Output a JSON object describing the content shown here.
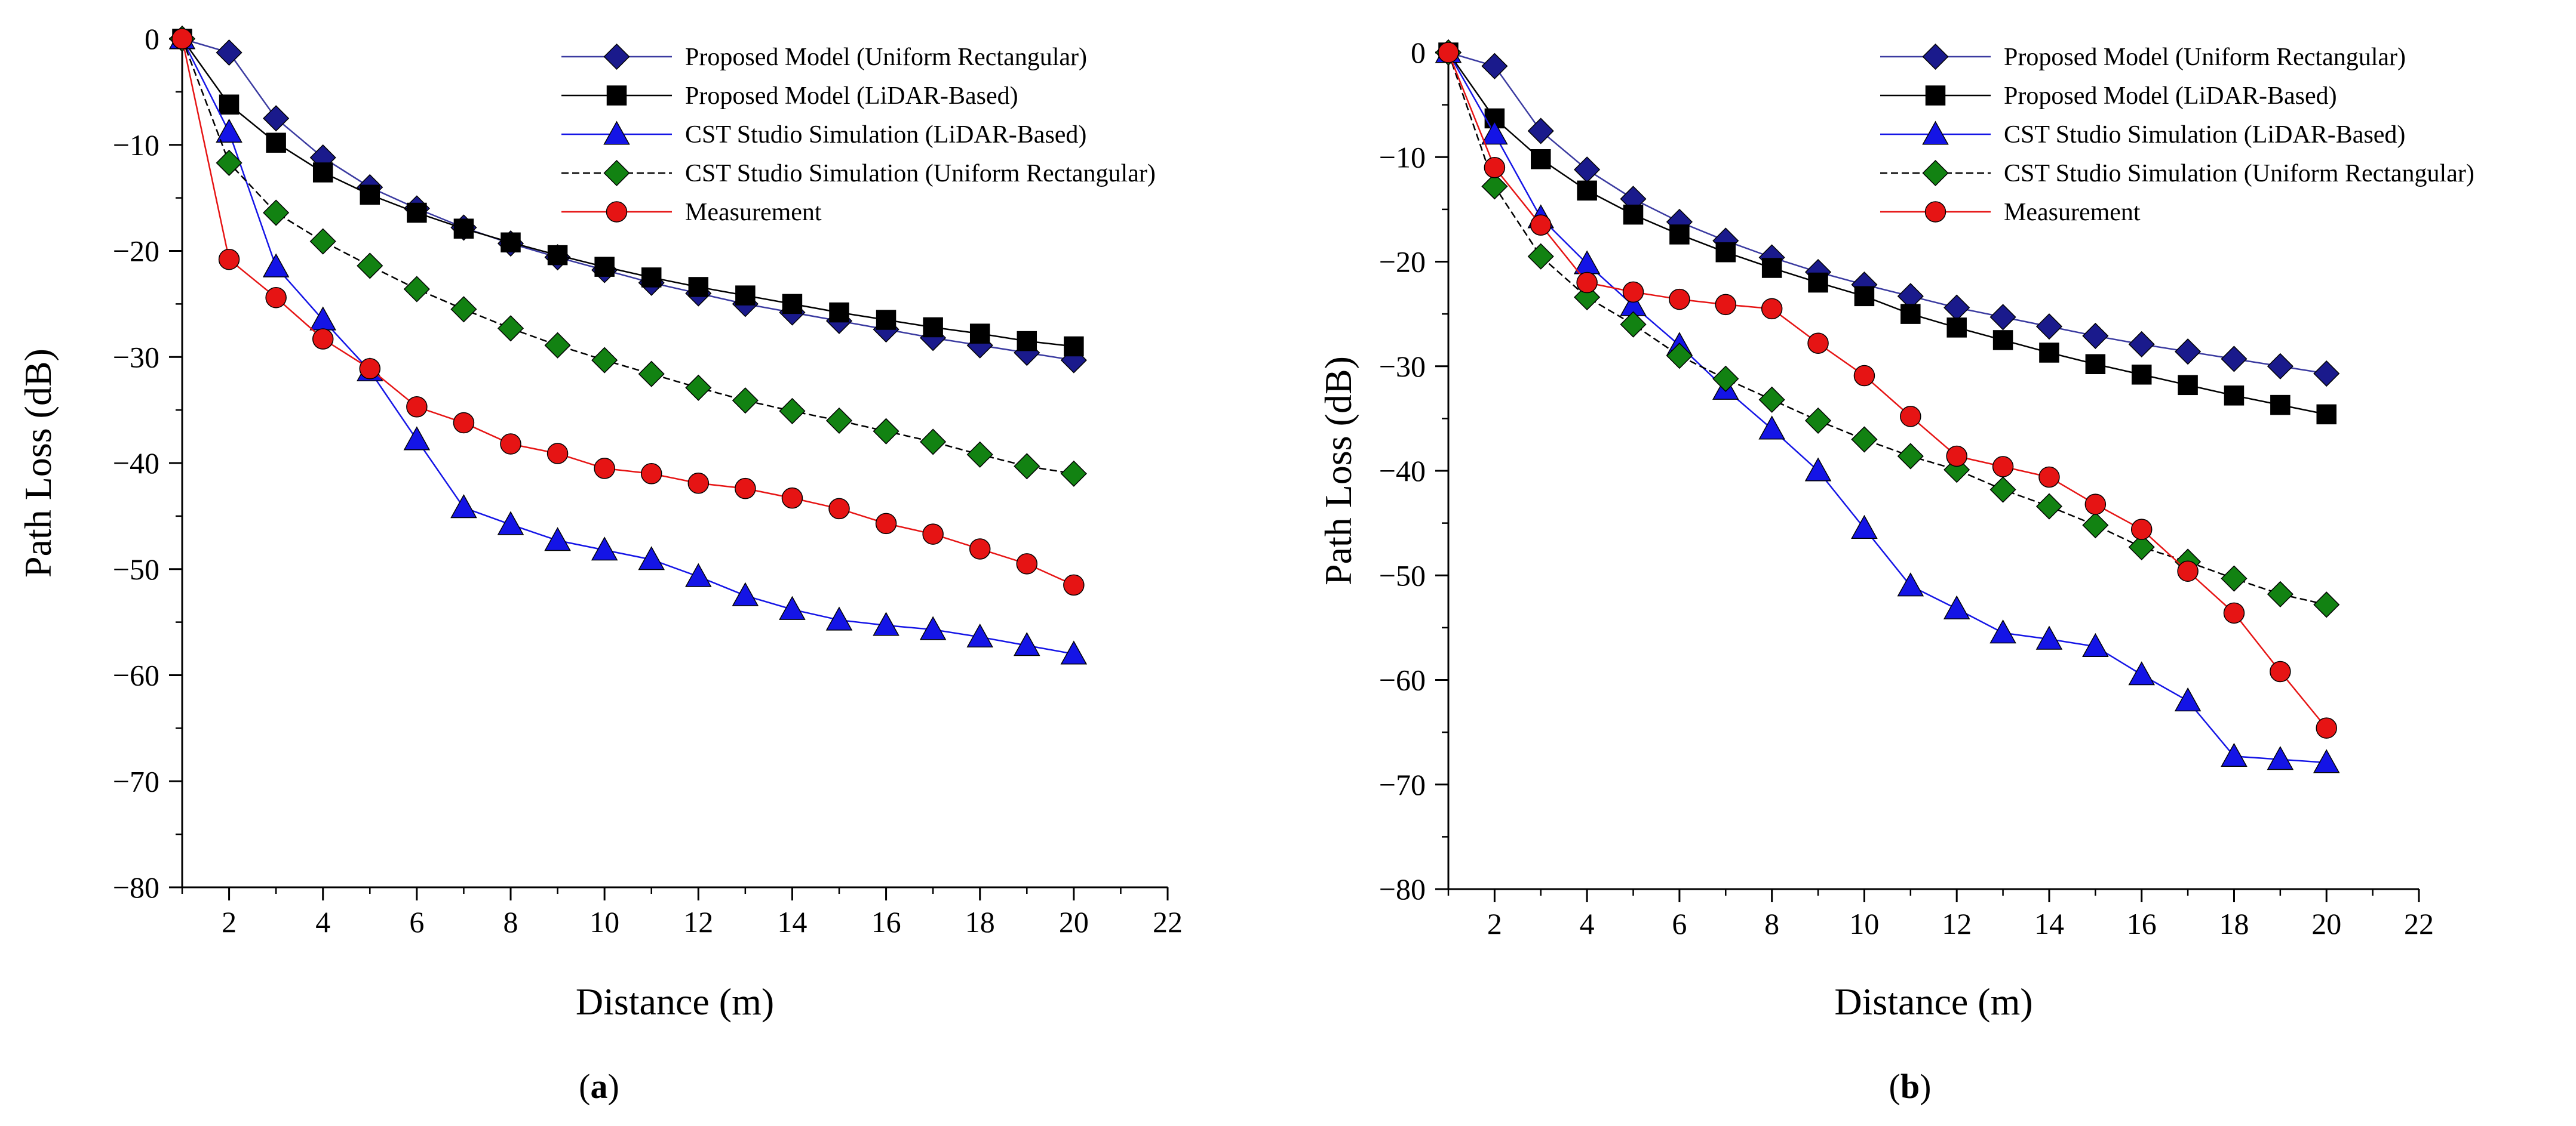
{
  "chart_data": [
    {
      "type": "line",
      "panel_label": {
        "open": "(",
        "letter": "a",
        "close": ")"
      },
      "xlabel": "Distance (m)",
      "ylabel": "Path Loss (dB)",
      "xlim": [
        1,
        22
      ],
      "ylim": [
        -80,
        0
      ],
      "xticks": [
        2,
        4,
        6,
        8,
        10,
        12,
        14,
        16,
        18,
        20,
        22
      ],
      "yticks": [
        0,
        -10,
        -20,
        -30,
        -40,
        -50,
        -60,
        -70,
        -80
      ],
      "x": [
        1,
        2,
        3,
        4,
        5,
        6,
        7,
        8,
        9,
        10,
        11,
        12,
        13,
        14,
        15,
        16,
        17,
        18,
        19,
        20
      ],
      "legend_position": "top-right",
      "series": [
        {
          "name": "Proposed Model (Uniform Rectangular)",
          "marker": "diamond",
          "color": "#1a1a8c",
          "line_color": "#3a3aa0",
          "values": [
            0,
            -1.3,
            -7.5,
            -11.2,
            -14.0,
            -16.0,
            -17.8,
            -19.3,
            -20.6,
            -21.8,
            -23.0,
            -24.0,
            -25.0,
            -25.8,
            -26.6,
            -27.4,
            -28.2,
            -28.9,
            -29.6,
            -30.3
          ]
        },
        {
          "name": "Proposed Model (LiDAR-Based)",
          "marker": "square",
          "color": "#000000",
          "line_color": "#000000",
          "values": [
            0,
            -6.2,
            -9.8,
            -12.6,
            -14.7,
            -16.4,
            -17.9,
            -19.2,
            -20.4,
            -21.5,
            -22.5,
            -23.4,
            -24.2,
            -25.0,
            -25.8,
            -26.5,
            -27.2,
            -27.8,
            -28.5,
            -29.0
          ]
        },
        {
          "name": "CST Studio Simulation (LiDAR-Based)",
          "marker": "triangle",
          "color": "#1414e6",
          "line_color": "#1414e6",
          "values": [
            0,
            -8.8,
            -21.5,
            -26.5,
            -31.3,
            -37.8,
            -44.2,
            -45.8,
            -47.3,
            -48.2,
            -49.1,
            -50.7,
            -52.5,
            -53.8,
            -54.8,
            -55.3,
            -55.7,
            -56.4,
            -57.2,
            -58.0
          ]
        },
        {
          "name": "CST Studio Simulation (Uniform Rectangular)",
          "marker": "diamond",
          "color": "#128212",
          "line_color": "#000000",
          "dashed": true,
          "values": [
            0,
            -11.7,
            -16.4,
            -19.1,
            -21.4,
            -23.6,
            -25.5,
            -27.3,
            -28.9,
            -30.3,
            -31.6,
            -32.9,
            -34.1,
            -35.1,
            -36.0,
            -37.0,
            -38.0,
            -39.2,
            -40.3,
            -41.0
          ]
        },
        {
          "name": "Measurement",
          "marker": "circle",
          "color": "#e61414",
          "line_color": "#e61414",
          "values": [
            0,
            -20.8,
            -24.4,
            -28.3,
            -31.1,
            -34.7,
            -36.2,
            -38.2,
            -39.1,
            -40.5,
            -41.0,
            -41.9,
            -42.4,
            -43.3,
            -44.3,
            -45.7,
            -46.7,
            -48.1,
            -49.5,
            -51.5
          ]
        }
      ]
    },
    {
      "type": "line",
      "panel_label": {
        "open": "(",
        "letter": "b",
        "close": ")"
      },
      "xlabel": "Distance (m)",
      "ylabel": "Path Loss (dB)",
      "xlim": [
        1,
        22
      ],
      "ylim": [
        -80,
        0
      ],
      "xticks": [
        2,
        4,
        6,
        8,
        10,
        12,
        14,
        16,
        18,
        20,
        22
      ],
      "yticks": [
        0,
        -10,
        -20,
        -30,
        -40,
        -50,
        -60,
        -70,
        -80
      ],
      "x": [
        1,
        2,
        3,
        4,
        5,
        6,
        7,
        8,
        9,
        10,
        11,
        12,
        13,
        14,
        15,
        16,
        17,
        18,
        19,
        20
      ],
      "legend_position": "top-right",
      "series": [
        {
          "name": "Proposed Model (Uniform Rectangular)",
          "marker": "diamond",
          "color": "#1a1a8c",
          "line_color": "#3a3aa0",
          "values": [
            0,
            -1.3,
            -7.5,
            -11.2,
            -14.0,
            -16.2,
            -18.0,
            -19.6,
            -21.0,
            -22.2,
            -23.3,
            -24.4,
            -25.3,
            -26.2,
            -27.1,
            -27.9,
            -28.6,
            -29.3,
            -30.0,
            -30.7
          ]
        },
        {
          "name": "Proposed Model (LiDAR-Based)",
          "marker": "square",
          "color": "#000000",
          "line_color": "#000000",
          "values": [
            0,
            -6.3,
            -10.2,
            -13.2,
            -15.5,
            -17.4,
            -19.1,
            -20.6,
            -22.0,
            -23.3,
            -25.0,
            -26.3,
            -27.5,
            -28.7,
            -29.8,
            -30.8,
            -31.8,
            -32.8,
            -33.7,
            -34.6
          ]
        },
        {
          "name": "CST Studio Simulation (LiDAR-Based)",
          "marker": "triangle",
          "color": "#1414e6",
          "line_color": "#1414e6",
          "values": [
            0,
            -7.8,
            -15.8,
            -20.2,
            -24.2,
            -28.0,
            -32.2,
            -36.0,
            -40.0,
            -45.5,
            -51.0,
            -53.2,
            -55.5,
            -56.1,
            -56.8,
            -59.5,
            -62.0,
            -67.3,
            -67.6,
            -67.9
          ]
        },
        {
          "name": "CST Studio Simulation (Uniform Rectangular)",
          "marker": "diamond",
          "color": "#128212",
          "line_color": "#000000",
          "dashed": true,
          "values": [
            0,
            -12.8,
            -19.5,
            -23.4,
            -26.0,
            -29.0,
            -31.2,
            -33.2,
            -35.2,
            -37.0,
            -38.6,
            -39.9,
            -41.8,
            -43.4,
            -45.2,
            -47.3,
            -48.7,
            -50.3,
            -51.8,
            -52.8
          ]
        },
        {
          "name": "Measurement",
          "marker": "circle",
          "color": "#e61414",
          "line_color": "#e61414",
          "values": [
            0,
            -11.0,
            -16.5,
            -22.0,
            -22.9,
            -23.6,
            -24.1,
            -24.5,
            -27.8,
            -30.9,
            -34.8,
            -38.6,
            -39.6,
            -40.6,
            -43.2,
            -45.6,
            -49.6,
            -53.6,
            -59.2,
            -64.6
          ]
        }
      ]
    }
  ]
}
